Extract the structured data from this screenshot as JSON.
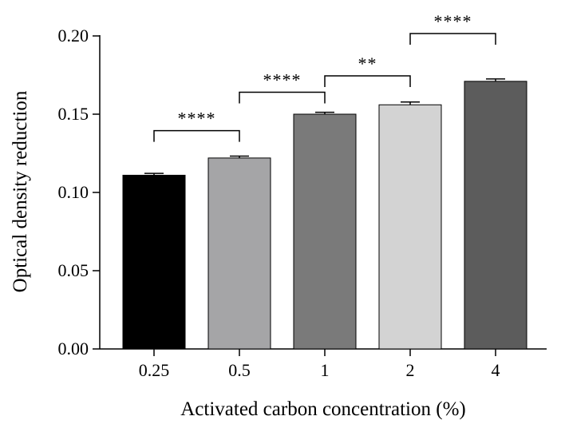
{
  "chart_data": {
    "type": "bar",
    "categories": [
      "0.25",
      "0.5",
      "1",
      "2",
      "4"
    ],
    "values": [
      0.111,
      0.122,
      0.15,
      0.156,
      0.171
    ],
    "errors": [
      0.0012,
      0.0012,
      0.0012,
      0.0018,
      0.0015
    ],
    "bar_colors": [
      "#000000",
      "#a5a5a7",
      "#7a7a7a",
      "#d3d3d3",
      "#5c5c5c"
    ],
    "xlabel": "Activated carbon concentration (%)",
    "ylabel": "Optical density reduction",
    "ylim": [
      0,
      0.2
    ],
    "yticks": [
      0,
      0.05,
      0.1,
      0.15,
      0.2
    ],
    "ytick_labels": [
      "0.00",
      "0.05",
      "0.10",
      "0.15",
      "0.20"
    ],
    "grid": false,
    "significance": [
      {
        "from": 0,
        "to": 1,
        "label": "****",
        "y": 0.1395
      },
      {
        "from": 1,
        "to": 2,
        "label": "****",
        "y": 0.164
      },
      {
        "from": 2,
        "to": 3,
        "label": "**",
        "y": 0.1745
      },
      {
        "from": 3,
        "to": 4,
        "label": "****",
        "y": 0.2015
      }
    ]
  }
}
